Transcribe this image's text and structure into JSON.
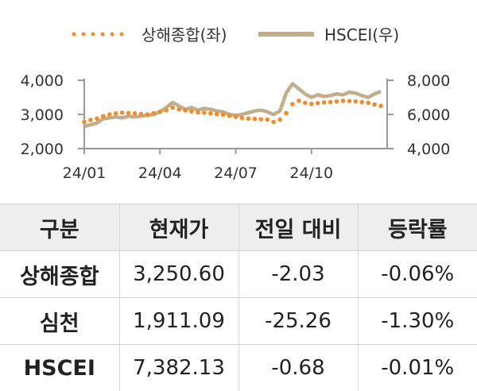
{
  "chart_data": {
    "type": "line",
    "x_ticks": [
      "24/01",
      "24/04",
      "24/07",
      "24/10"
    ],
    "x_range": [
      0,
      12
    ],
    "y_left": {
      "range": [
        2000,
        4000
      ],
      "ticks": [
        "2,000",
        "3,000",
        "4,000"
      ]
    },
    "y_right": {
      "range": [
        4000,
        8000
      ],
      "ticks": [
        "4,000",
        "6,000",
        "8,000"
      ]
    },
    "series": [
      {
        "name": "상해종합(좌)",
        "axis": "left",
        "style": "dotted",
        "color": "#f08c2a",
        "x": [
          0,
          0.25,
          0.5,
          0.75,
          1,
          1.25,
          1.5,
          1.75,
          2,
          2.25,
          2.5,
          2.75,
          3,
          3.25,
          3.5,
          3.75,
          4,
          4.25,
          4.5,
          4.75,
          5,
          5.25,
          5.5,
          5.75,
          6,
          6.25,
          6.5,
          6.75,
          7,
          7.25,
          7.5,
          7.75,
          8,
          8.25,
          8.5,
          8.75,
          9,
          9.25,
          9.5,
          9.75,
          10,
          10.25,
          10.5,
          10.75,
          11,
          11.25,
          11.5,
          11.75
        ],
        "values": [
          2780,
          2840,
          2880,
          2950,
          3000,
          3030,
          3050,
          3040,
          3030,
          3010,
          3000,
          3040,
          3080,
          3120,
          3200,
          3150,
          3120,
          3090,
          3060,
          3050,
          3030,
          3010,
          2990,
          2960,
          2930,
          2900,
          2880,
          2870,
          2860,
          2850,
          2780,
          2850,
          3040,
          3300,
          3400,
          3340,
          3310,
          3330,
          3350,
          3360,
          3380,
          3400,
          3390,
          3380,
          3360,
          3340,
          3290,
          3250
        ]
      },
      {
        "name": "HSCEI(우)",
        "axis": "right",
        "style": "solid",
        "color": "#c2ad8d",
        "x": [
          0,
          0.25,
          0.5,
          0.75,
          1,
          1.25,
          1.5,
          1.75,
          2,
          2.25,
          2.5,
          2.75,
          3,
          3.25,
          3.5,
          3.75,
          4,
          4.25,
          4.5,
          4.75,
          5,
          5.25,
          5.5,
          5.75,
          6,
          6.25,
          6.5,
          6.75,
          7,
          7.25,
          7.5,
          7.75,
          8,
          8.25,
          8.5,
          8.75,
          9,
          9.25,
          9.5,
          9.75,
          10,
          10.25,
          10.5,
          10.75,
          11,
          11.25,
          11.5,
          11.75
        ],
        "values": [
          5300,
          5400,
          5500,
          5750,
          5800,
          5850,
          5800,
          5900,
          5850,
          5900,
          5950,
          6000,
          6150,
          6400,
          6700,
          6500,
          6300,
          6400,
          6250,
          6350,
          6300,
          6200,
          6150,
          6000,
          5950,
          6000,
          6100,
          6200,
          6250,
          6150,
          6000,
          6200,
          7250,
          7800,
          7500,
          7200,
          7000,
          7150,
          7050,
          7100,
          7200,
          7150,
          7300,
          7250,
          7100,
          7000,
          7200,
          7350
        ]
      }
    ]
  },
  "table": {
    "headers": [
      "구분",
      "현재가",
      "전일 대비",
      "등락률"
    ],
    "rows": [
      {
        "name": "상해종합",
        "price": "3,250.60",
        "change": "-2.03",
        "pct": "-0.06%"
      },
      {
        "name": "심천",
        "price": "1,911.09",
        "change": "-25.26",
        "pct": "-1.30%"
      },
      {
        "name": "HSCEI",
        "price": "7,382.13",
        "change": "-0.68",
        "pct": "-0.01%"
      }
    ]
  }
}
